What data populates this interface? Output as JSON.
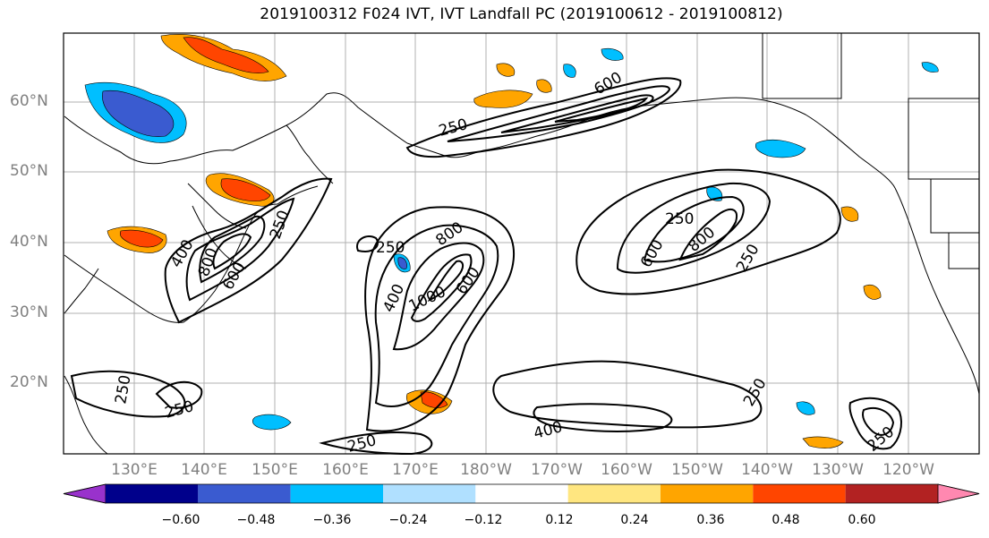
{
  "title": "2019100312 F024 IVT, IVT Landfall PC (2019100612 - 2019100812)",
  "lat_labels": [
    "60°N",
    "50°N",
    "40°N",
    "30°N",
    "20°N"
  ],
  "lon_labels": [
    "130°E",
    "140°E",
    "150°E",
    "160°E",
    "170°E",
    "180°W",
    "170°W",
    "160°W",
    "150°W",
    "140°W",
    "130°W",
    "120°W"
  ],
  "colorbar": {
    "ticks": [
      "−0.60",
      "−0.48",
      "−0.36",
      "−0.24",
      "−0.12",
      "0.12",
      "0.24",
      "0.36",
      "0.48",
      "0.60"
    ],
    "colors": [
      "#9932cc",
      "#00008b",
      "#3a5bd0",
      "#00bfff",
      "#b0e0ff",
      "#ffffff",
      "#ffe680",
      "#ffa500",
      "#ff4500",
      "#b22222",
      "#ff88b0"
    ]
  },
  "contour_labels": [
    "250",
    "600",
    "250",
    "400",
    "800",
    "600",
    "250",
    "800",
    "600",
    "400",
    "1000",
    "250",
    "800",
    "600",
    "250",
    "250",
    "250",
    "250",
    "250",
    "400",
    "250"
  ],
  "colors": {
    "land_line": "#000000",
    "grid": "#b0b0b0",
    "contour": "#000000"
  }
}
